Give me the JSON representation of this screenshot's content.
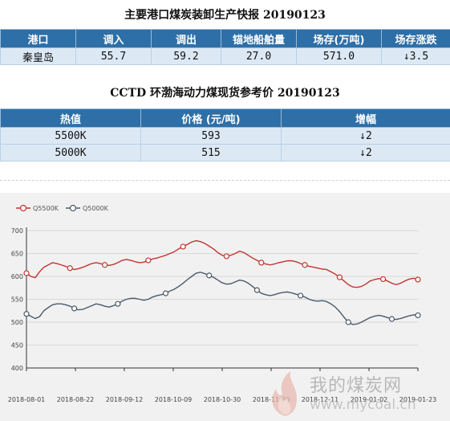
{
  "section1": {
    "title": "主要港口煤炭装卸生产快报 20190123",
    "headers": [
      "港口",
      "调入",
      "调出",
      "锚地船舶量",
      "场存(万吨)",
      "场存涨跌"
    ],
    "row": [
      "秦皇岛",
      "55.7",
      "59.2",
      "27.0",
      "571.0",
      "↓3.5"
    ]
  },
  "section2": {
    "title": "CCTD 环渤海动力煤现货参考价 20190123",
    "headers": [
      "热值",
      "价格 (元/吨)",
      "增幅"
    ],
    "rows": [
      [
        "5500K",
        "593",
        "↓2"
      ],
      [
        "5000K",
        "515",
        "↓2"
      ]
    ]
  },
  "watermark": {
    "text": "我的煤炭网",
    "url": "www.mycoal.cn"
  },
  "chart_data": {
    "type": "line",
    "title": "",
    "xlabel": "",
    "ylabel": "",
    "ylim": [
      400,
      700
    ],
    "yticks": [
      400,
      450,
      500,
      550,
      600,
      650,
      700
    ],
    "xticks": [
      "2018-08-01",
      "2018-08-22",
      "2018-09-12",
      "2018-10-09",
      "2018-10-30",
      "2018-11-20",
      "2018-12-11",
      "2019-01-02",
      "2019-01-23"
    ],
    "legend_position": "top-left",
    "grid": true,
    "series": [
      {
        "name": "Q5500K",
        "color": "#c23531",
        "values": [
          607,
          600,
          597,
          610,
          620,
          625,
          630,
          628,
          625,
          622,
          618,
          615,
          617,
          620,
          624,
          628,
          630,
          628,
          625,
          624,
          626,
          630,
          635,
          637,
          635,
          632,
          630,
          631,
          635,
          638,
          640,
          643,
          646,
          650,
          654,
          660,
          665,
          670,
          675,
          678,
          676,
          672,
          666,
          660,
          652,
          646,
          644,
          646,
          650,
          655,
          652,
          646,
          640,
          635,
          630,
          627,
          625,
          627,
          630,
          632,
          634,
          634,
          632,
          628,
          625,
          622,
          620,
          618,
          616,
          615,
          610,
          605,
          598,
          590,
          582,
          577,
          576,
          578,
          583,
          590,
          593,
          595,
          594,
          590,
          585,
          582,
          585,
          590,
          594,
          596,
          593
        ]
      },
      {
        "name": "Q5000K",
        "color": "#4a5a6a",
        "values": [
          518,
          513,
          508,
          512,
          525,
          532,
          538,
          540,
          540,
          538,
          535,
          530,
          527,
          528,
          532,
          536,
          540,
          538,
          535,
          533,
          536,
          540,
          546,
          550,
          552,
          552,
          550,
          548,
          550,
          555,
          558,
          560,
          563,
          568,
          572,
          578,
          585,
          593,
          600,
          607,
          609,
          606,
          602,
          598,
          592,
          586,
          583,
          584,
          588,
          592,
          590,
          585,
          578,
          570,
          563,
          560,
          558,
          560,
          563,
          565,
          566,
          564,
          561,
          558,
          555,
          550,
          547,
          546,
          547,
          545,
          540,
          533,
          523,
          511,
          500,
          495,
          496,
          500,
          505,
          510,
          513,
          515,
          513,
          510,
          507,
          506,
          508,
          511,
          514,
          516,
          515
        ]
      }
    ]
  }
}
